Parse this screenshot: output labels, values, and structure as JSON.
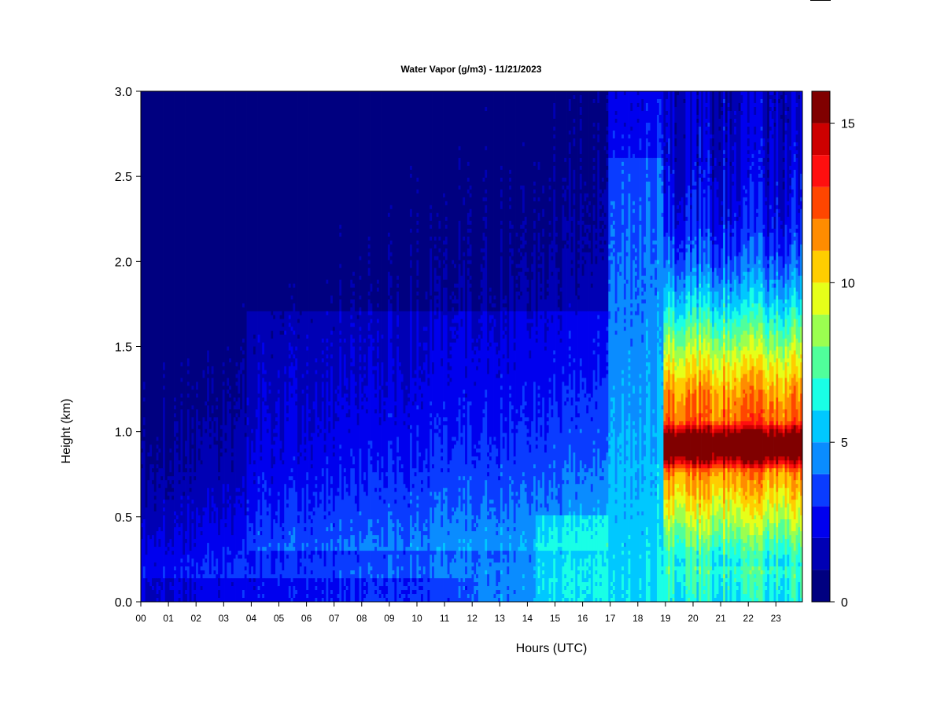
{
  "chart_data": {
    "type": "heatmap",
    "title": "Water Vapor (g/m3) - 11/21/2023",
    "xlabel": "Hours (UTC)",
    "ylabel": "Height (km)",
    "x_ticks": [
      "00",
      "01",
      "02",
      "03",
      "04",
      "05",
      "06",
      "07",
      "08",
      "09",
      "10",
      "11",
      "12",
      "13",
      "14",
      "15",
      "16",
      "17",
      "18",
      "19",
      "20",
      "21",
      "22",
      "23"
    ],
    "y_ticks": [
      "0.0",
      "0.5",
      "1.0",
      "1.5",
      "2.0",
      "2.5",
      "3.0"
    ],
    "xlim": [
      0,
      24
    ],
    "ylim": [
      0,
      3.0
    ],
    "colorbar": {
      "ticks": [
        "0",
        "5",
        "10",
        "15"
      ],
      "tick_values": [
        0,
        5,
        10,
        15
      ],
      "range": [
        0,
        16
      ],
      "levels": [
        {
          "from": 0,
          "to": 1,
          "color": "#000080"
        },
        {
          "from": 1,
          "to": 2,
          "color": "#0000b4"
        },
        {
          "from": 2,
          "to": 3,
          "color": "#0000ee"
        },
        {
          "from": 3,
          "to": 4,
          "color": "#0a3cff"
        },
        {
          "from": 4,
          "to": 5,
          "color": "#0a8cff"
        },
        {
          "from": 5,
          "to": 6,
          "color": "#00c8ff"
        },
        {
          "from": 6,
          "to": 7,
          "color": "#19ffe6"
        },
        {
          "from": 7,
          "to": 8,
          "color": "#50ff9b"
        },
        {
          "from": 8,
          "to": 9,
          "color": "#9bff50"
        },
        {
          "from": 9,
          "to": 10,
          "color": "#e6ff19"
        },
        {
          "from": 10,
          "to": 11,
          "color": "#ffcd00"
        },
        {
          "from": 11,
          "to": 12,
          "color": "#ff8c00"
        },
        {
          "from": 12,
          "to": 13,
          "color": "#ff4600"
        },
        {
          "from": 13,
          "to": 14,
          "color": "#ff0f0f"
        },
        {
          "from": 14,
          "to": 15,
          "color": "#cd0000"
        },
        {
          "from": 15,
          "to": 16,
          "color": "#800000"
        }
      ]
    },
    "grid": false
  }
}
